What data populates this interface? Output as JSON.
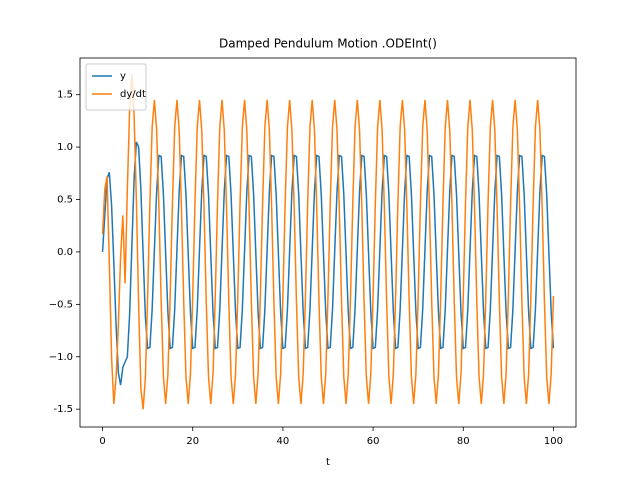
{
  "chart_data": {
    "type": "line",
    "title": "Damped Pendulum Motion .ODEInt()",
    "xlabel": "t",
    "x": [
      0,
      0.5,
      1,
      1.5,
      2,
      2.5,
      3,
      3.5,
      4,
      4.5,
      5,
      5.5,
      6,
      6.5,
      7,
      7.5,
      8,
      8.5,
      9,
      9.5,
      10,
      10.5,
      11,
      11.5,
      12,
      12.5,
      13,
      13.5,
      14,
      14.5,
      15,
      15.5,
      16,
      16.5,
      17,
      17.5,
      18,
      18.5,
      19,
      19.5,
      20,
      20.5,
      21,
      21.5,
      22,
      22.5,
      23,
      23.5,
      24,
      24.5,
      25,
      25.5,
      26,
      26.5,
      27,
      27.5,
      28,
      28.5,
      29,
      29.5,
      30,
      30.5,
      31,
      31.5,
      32,
      32.5,
      33,
      33.5,
      34,
      34.5,
      35,
      35.5,
      36,
      36.5,
      37,
      37.5,
      38,
      38.5,
      39,
      39.5,
      40,
      40.5,
      41,
      41.5,
      42,
      42.5,
      43,
      43.5,
      44,
      44.5,
      45,
      45.5,
      46,
      46.5,
      47,
      47.5,
      48,
      48.5,
      49,
      49.5,
      50,
      50.5,
      51,
      51.5,
      52,
      52.5,
      53,
      53.5,
      54,
      54.5,
      55,
      55.5,
      56,
      56.5,
      57,
      57.5,
      58,
      58.5,
      59,
      59.5,
      60,
      60.5,
      61,
      61.5,
      62,
      62.5,
      63,
      63.5,
      64,
      64.5,
      65,
      65.5,
      66,
      66.5,
      67,
      67.5,
      68,
      68.5,
      69,
      69.5,
      70,
      70.5,
      71,
      71.5,
      72,
      72.5,
      73,
      73.5,
      74,
      74.5,
      75,
      75.5,
      76,
      76.5,
      77,
      77.5,
      78,
      78.5,
      79,
      79.5,
      80,
      80.5,
      81,
      81.5,
      82,
      82.5,
      83,
      83.5,
      84,
      84.5,
      85,
      85.5,
      86,
      86.5,
      87,
      87.5,
      88,
      88.5,
      89,
      89.5,
      90,
      90.5,
      91,
      91.5,
      92,
      92.5,
      93,
      93.5,
      94,
      94.5,
      95,
      95.5,
      96,
      96.5,
      97,
      97.5,
      98,
      98.5,
      99,
      99.5,
      100
    ],
    "series": [
      {
        "name": "y",
        "color": "#1f77b4",
        "values": [
          0,
          0.35,
          0.7,
          0.76,
          0.45,
          -0.1,
          -0.7,
          -1.15,
          -1.27,
          -1.1,
          -1.05,
          -1.0,
          -0.6,
          0.05,
          0.7,
          1.05,
          1.0,
          0.6,
          -0.02,
          -0.62,
          -0.92,
          -0.91,
          -0.55,
          0.02,
          0.58,
          0.92,
          0.91,
          0.55,
          -0.02,
          -0.58,
          -0.92,
          -0.91,
          -0.55,
          0.02,
          0.58,
          0.92,
          0.91,
          0.55,
          -0.02,
          -0.58,
          -0.92,
          -0.91,
          -0.55,
          0.02,
          0.58,
          0.92,
          0.91,
          0.55,
          -0.02,
          -0.58,
          -0.92,
          -0.91,
          -0.55,
          0.02,
          0.58,
          0.92,
          0.91,
          0.55,
          -0.02,
          -0.58,
          -0.92,
          -0.91,
          -0.55,
          0.02,
          0.58,
          0.92,
          0.91,
          0.55,
          -0.02,
          -0.58,
          -0.92,
          -0.91,
          -0.55,
          0.02,
          0.58,
          0.92,
          0.91,
          0.55,
          -0.02,
          -0.58,
          -0.92,
          -0.91,
          -0.55,
          0.02,
          0.58,
          0.92,
          0.91,
          0.55,
          -0.02,
          -0.58,
          -0.92,
          -0.91,
          -0.55,
          0.02,
          0.58,
          0.92,
          0.91,
          0.55,
          -0.02,
          -0.58,
          -0.92,
          -0.91,
          -0.55,
          0.02,
          0.58,
          0.92,
          0.91,
          0.55,
          -0.02,
          -0.58,
          -0.92,
          -0.91,
          -0.55,
          0.02,
          0.58,
          0.92,
          0.91,
          0.55,
          -0.02,
          -0.58,
          -0.92,
          -0.91,
          -0.55,
          0.02,
          0.58,
          0.92,
          0.91,
          0.55,
          -0.02,
          -0.58,
          -0.92,
          -0.91,
          -0.55,
          0.02,
          0.58,
          0.92,
          0.91,
          0.55,
          -0.02,
          -0.58,
          -0.92,
          -0.91,
          -0.55,
          0.02,
          0.58,
          0.92,
          0.91,
          0.55,
          -0.02,
          -0.58,
          -0.92,
          -0.91,
          -0.55,
          0.02,
          0.58,
          0.92,
          0.91,
          0.55,
          -0.02,
          -0.58,
          -0.92,
          -0.91,
          -0.55,
          0.02,
          0.58,
          0.92,
          0.91,
          0.55,
          -0.02,
          -0.58,
          -0.92,
          -0.91,
          -0.55,
          0.02,
          0.58,
          0.92,
          0.91,
          0.55,
          -0.02,
          -0.58,
          -0.92,
          -0.91,
          -0.55,
          0.02,
          0.58,
          0.92,
          0.91,
          0.55,
          -0.02,
          -0.58,
          -0.92,
          -0.91,
          -0.55,
          0.02,
          0.58,
          0.92,
          0.91,
          0.55,
          -0.02,
          -0.58,
          -0.92
        ]
      },
      {
        "name": "dy/dt",
        "color": "#ff7f0e",
        "values": [
          0.17,
          0.6,
          0.72,
          -0.1,
          -1.0,
          -1.45,
          -1.2,
          -0.7,
          -0.05,
          0.35,
          -0.3,
          0.6,
          1.35,
          1.7,
          1.3,
          0.5,
          -0.5,
          -1.3,
          -1.5,
          -1.2,
          -0.42,
          0.47,
          1.19,
          1.45,
          1.16,
          0.42,
          -0.47,
          -1.19,
          -1.45,
          -1.16,
          -0.42,
          0.47,
          1.19,
          1.45,
          1.16,
          0.42,
          -0.47,
          -1.19,
          -1.45,
          -1.16,
          -0.42,
          0.47,
          1.19,
          1.45,
          1.16,
          0.42,
          -0.47,
          -1.19,
          -1.45,
          -1.16,
          -0.42,
          0.47,
          1.19,
          1.45,
          1.16,
          0.42,
          -0.47,
          -1.19,
          -1.45,
          -1.16,
          -0.42,
          0.47,
          1.19,
          1.45,
          1.16,
          0.42,
          -0.47,
          -1.19,
          -1.45,
          -1.16,
          -0.42,
          0.47,
          1.19,
          1.45,
          1.16,
          0.42,
          -0.47,
          -1.19,
          -1.45,
          -1.16,
          -0.42,
          0.47,
          1.19,
          1.45,
          1.16,
          0.42,
          -0.47,
          -1.19,
          -1.45,
          -1.16,
          -0.42,
          0.47,
          1.19,
          1.45,
          1.16,
          0.42,
          -0.47,
          -1.19,
          -1.45,
          -1.16,
          -0.42,
          0.47,
          1.19,
          1.45,
          1.16,
          0.42,
          -0.47,
          -1.19,
          -1.45,
          -1.16,
          -0.42,
          0.47,
          1.19,
          1.45,
          1.16,
          0.42,
          -0.47,
          -1.19,
          -1.45,
          -1.16,
          -0.42,
          0.47,
          1.19,
          1.45,
          1.16,
          0.42,
          -0.47,
          -1.19,
          -1.45,
          -1.16,
          -0.42,
          0.47,
          1.19,
          1.45,
          1.16,
          0.42,
          -0.47,
          -1.19,
          -1.45,
          -1.16,
          -0.42,
          0.47,
          1.19,
          1.45,
          1.16,
          0.42,
          -0.47,
          -1.19,
          -1.45,
          -1.16,
          -0.42,
          0.47,
          1.19,
          1.45,
          1.16,
          0.42,
          -0.47,
          -1.19,
          -1.45,
          -1.16,
          -0.42,
          0.47,
          1.19,
          1.45,
          1.16,
          0.42,
          -0.47,
          -1.19,
          -1.45,
          -1.16,
          -0.42,
          0.47,
          1.19,
          1.45,
          1.16,
          0.42,
          -0.47,
          -1.19,
          -1.45,
          -1.16,
          -0.42,
          0.47,
          1.19,
          1.45,
          1.16,
          0.42,
          -0.47,
          -1.19,
          -1.45,
          -1.16,
          -0.42,
          0.47,
          1.19,
          1.45,
          1.16,
          0.42,
          -0.47,
          -1.19,
          -1.45,
          -1.16,
          -0.42
        ]
      }
    ],
    "xlim": [
      -5,
      105
    ],
    "ylim": [
      -1.67,
      1.85
    ],
    "xticks": [
      0,
      20,
      40,
      60,
      80,
      100
    ],
    "yticks": [
      -1.5,
      {
        "value": -1,
        "label": "−1.0"
      },
      {
        "value": -0.5,
        "label": "−0.5"
      },
      {
        "value": 0,
        "label": "0.0"
      },
      0.5,
      {
        "value": 1,
        "label": "1.0"
      },
      1.5
    ],
    "legend": "upper left"
  }
}
